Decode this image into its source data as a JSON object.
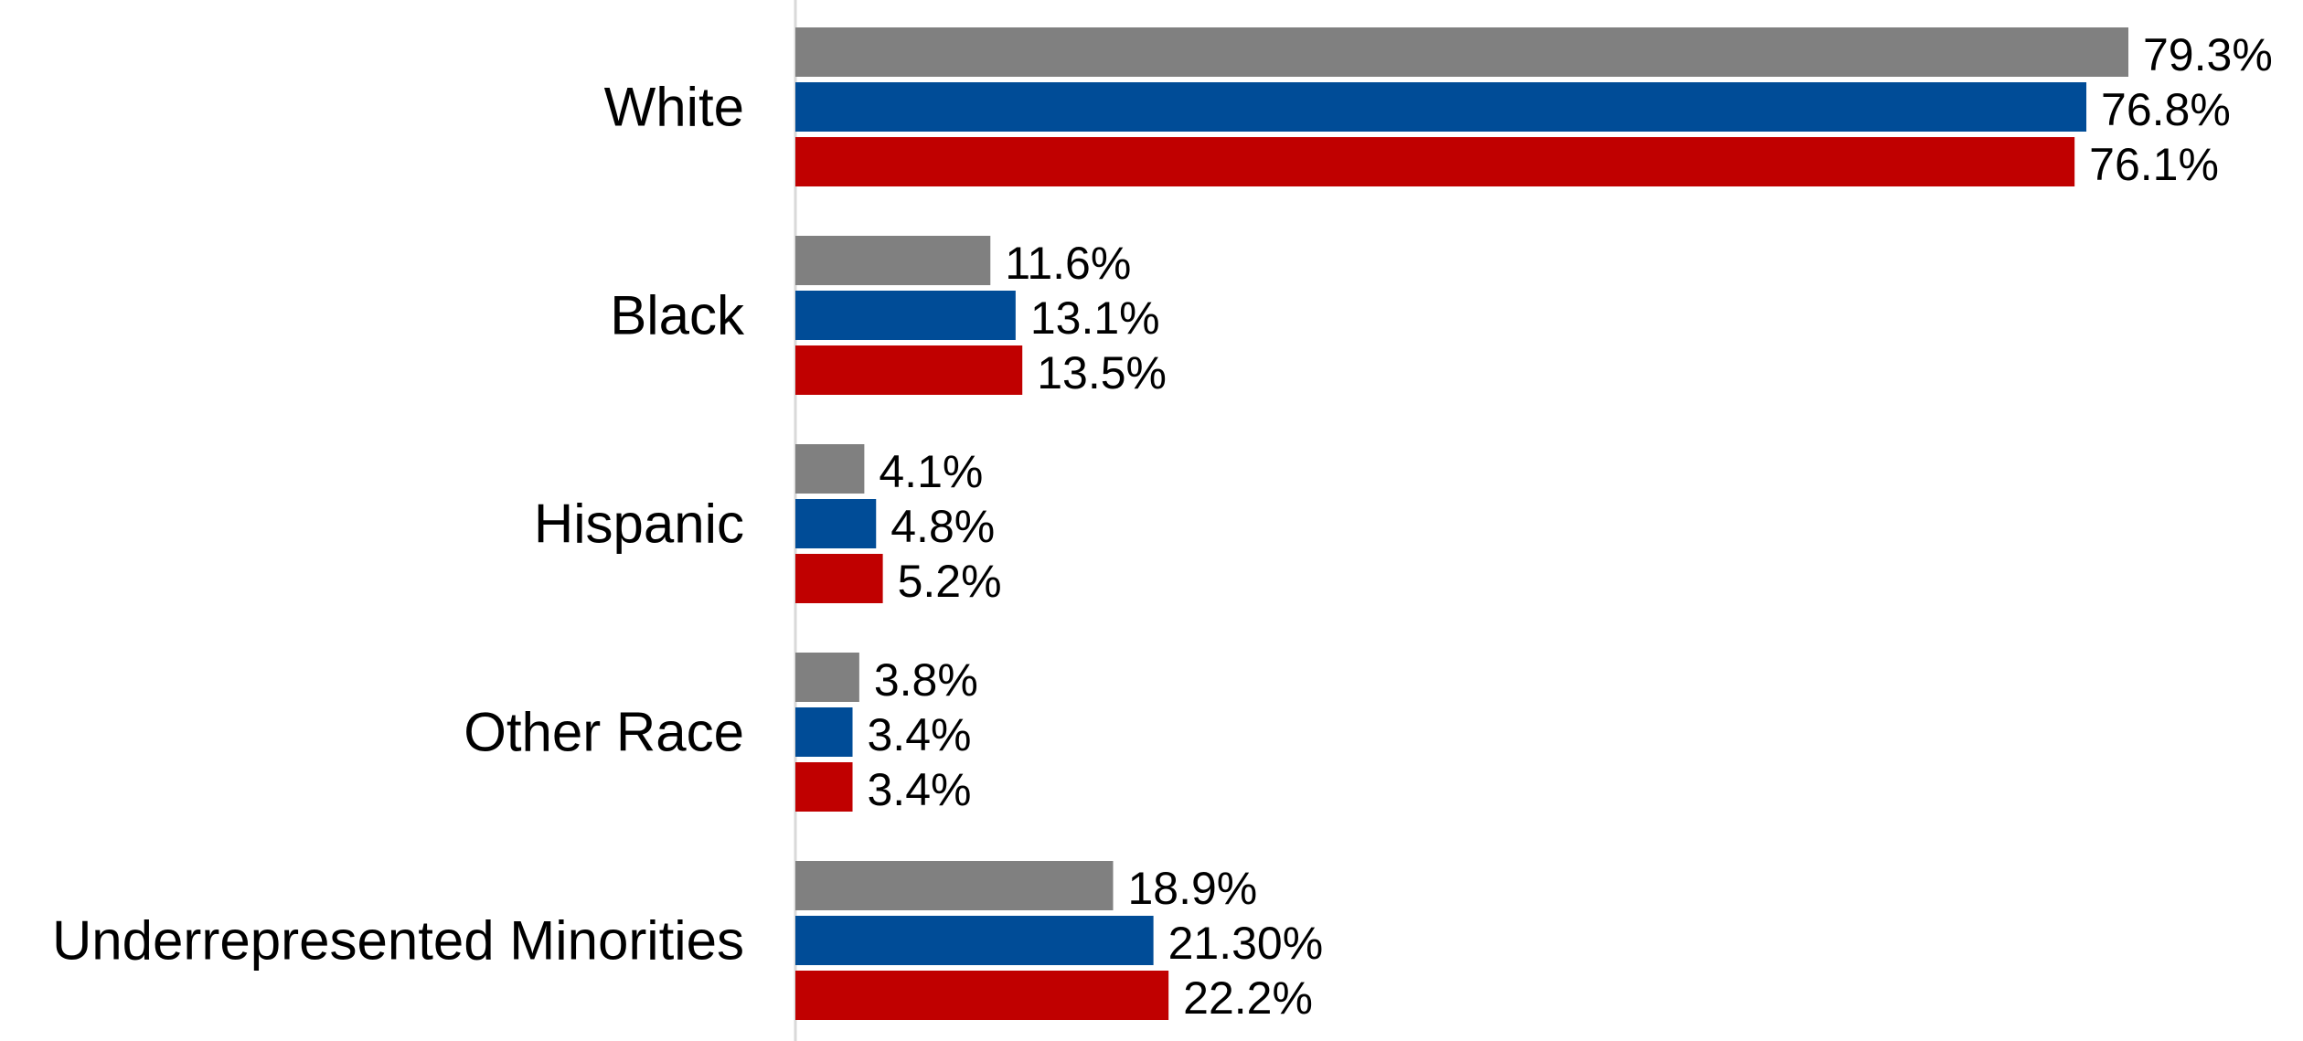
{
  "chart_data": {
    "type": "bar",
    "orientation": "horizontal",
    "title": "",
    "xlabel": "",
    "ylabel": "",
    "xlim": [
      0,
      100
    ],
    "grid": false,
    "legend": "none",
    "categories": [
      "White",
      "Black",
      "Hispanic",
      "Other Race",
      "Underrepresented Minorities"
    ],
    "series": [
      {
        "color": "#808080",
        "values": [
          79.3,
          11.6,
          4.1,
          3.8,
          18.9
        ],
        "labels": [
          "79.3%",
          "11.6%",
          "4.1%",
          "3.8%",
          "18.9%"
        ]
      },
      {
        "color": "#004C97",
        "values": [
          76.8,
          13.1,
          4.8,
          3.4,
          21.3
        ],
        "labels": [
          "76.8%",
          "13.1%",
          "4.8%",
          "3.4%",
          "21.30%"
        ]
      },
      {
        "color": "#C00000",
        "values": [
          76.1,
          13.5,
          5.2,
          3.4,
          22.2
        ],
        "labels": [
          "76.1%",
          "13.5%",
          "5.2%",
          "3.4%",
          "22.2%"
        ]
      }
    ]
  }
}
